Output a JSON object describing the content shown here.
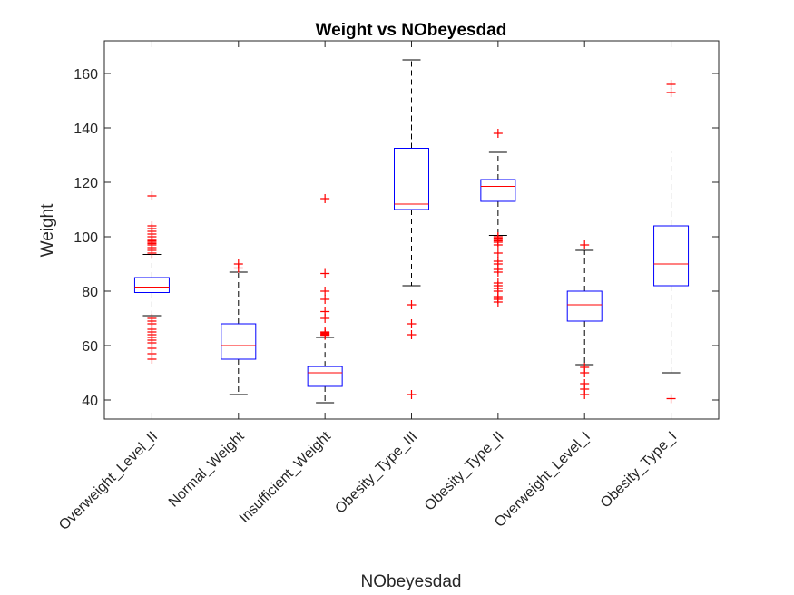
{
  "chart_data": {
    "type": "box",
    "title": "Weight vs NObeyesdad",
    "xlabel": "NObeyesdad",
    "ylabel": "Weight",
    "ylim": [
      33,
      172
    ],
    "yticks": [
      40,
      60,
      80,
      100,
      120,
      140,
      160
    ],
    "grid": false,
    "colors": {
      "box": "#0000ff",
      "median": "#ff0000",
      "outlier": "#ff0000",
      "whisker": "#000000",
      "axis": "#262626"
    },
    "categories": [
      "Overweight_Level_II",
      "Normal_Weight",
      "Insufficient_Weight",
      "Obesity_Type_III",
      "Obesity_Type_II",
      "Overweight_Level_I",
      "Obesity_Type_I"
    ],
    "boxes": [
      {
        "whisker_low": 71,
        "q1": 79.5,
        "median": 81.5,
        "q3": 85,
        "whisker_high": 93.5,
        "outliers": [
          55,
          57,
          59,
          61,
          62,
          63,
          64,
          65,
          66,
          68,
          69,
          70,
          94,
          95,
          96,
          97,
          97.5,
          98,
          98.5,
          99,
          100,
          101,
          102,
          103,
          104,
          115
        ]
      },
      {
        "whisker_low": 42,
        "q1": 55,
        "median": 60,
        "q3": 68,
        "whisker_high": 87,
        "outliers": [
          88.5,
          90
        ]
      },
      {
        "whisker_low": 39,
        "q1": 45,
        "median": 50,
        "q3": 52.3,
        "whisker_high": 63,
        "outliers": [
          63.8,
          64,
          64.3,
          64.7,
          65,
          70,
          72.5,
          77,
          80,
          86.5,
          114
        ]
      },
      {
        "whisker_low": 82,
        "q1": 110,
        "median": 112,
        "q3": 132.5,
        "whisker_high": 165,
        "outliers": [
          42,
          64,
          68,
          75
        ]
      },
      {
        "whisker_low": 100.5,
        "q1": 113,
        "median": 118.5,
        "q3": 121,
        "whisker_high": 131,
        "outliers": [
          76,
          77,
          77.5,
          78,
          80,
          81,
          82,
          83,
          87,
          88,
          90,
          91,
          94,
          97,
          98,
          98.5,
          99,
          99.5,
          100,
          138
        ]
      },
      {
        "whisker_low": 53,
        "q1": 69,
        "median": 75,
        "q3": 80,
        "whisker_high": 95,
        "outliers": [
          42,
          44,
          46,
          50,
          52,
          97
        ]
      },
      {
        "whisker_low": 50,
        "q1": 82,
        "median": 90,
        "q3": 104,
        "whisker_high": 131.5,
        "outliers": [
          40.5,
          153,
          156
        ]
      }
    ]
  }
}
